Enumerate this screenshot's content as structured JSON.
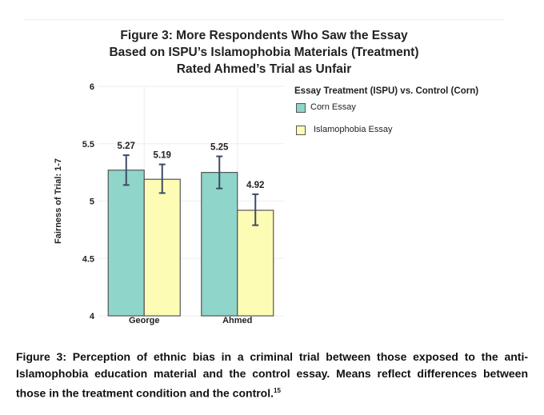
{
  "title_lines": [
    "Figure 3: More Respondents Who Saw the Essay",
    "Based on ISPU’s Islamophobia Materials (Treatment)",
    "Rated Ahmed’s Trial as Unfair"
  ],
  "caption": {
    "text": "Figure 3: Perception of ethnic bias in a criminal trial between those exposed to the anti-Islamophobia education material and the control essay. Means reflect differences between those in the treatment condition and the control.",
    "footnote": "15"
  },
  "colors": {
    "corn": "#8fd5c9",
    "islamophobia": "#fdfcb4",
    "bar_border": "#555555",
    "error_bar": "#3d4a66",
    "grid": "#eeeeee"
  },
  "chart_data": {
    "type": "bar",
    "categories": [
      "George",
      "Ahmed"
    ],
    "series": [
      {
        "name": "Corn Essay",
        "values": [
          5.27,
          5.25
        ],
        "error_low": [
          5.14,
          5.11
        ],
        "error_high": [
          5.4,
          5.39
        ]
      },
      {
        "name": "Islamophobia Essay",
        "values": [
          5.19,
          4.92
        ],
        "error_low": [
          5.07,
          4.79
        ],
        "error_high": [
          5.32,
          5.06
        ]
      }
    ],
    "data_labels": [
      [
        "5.27",
        "5.25"
      ],
      [
        "5.19",
        "4.92"
      ]
    ],
    "xlabel": "",
    "ylabel": "Fairness of Trial: 1-7",
    "ylim": [
      4,
      6
    ],
    "yticks": [
      4,
      4.5,
      5,
      5.5,
      6
    ],
    "ytick_labels": [
      "4",
      "4.5",
      "5",
      "5.5",
      "6"
    ],
    "grid": true,
    "legend": {
      "title": "Essay Treatment (ISPU) vs. Control (Corn)",
      "position": "right",
      "items": [
        "Corn Essay",
        "Islamophobia Essay"
      ]
    }
  }
}
